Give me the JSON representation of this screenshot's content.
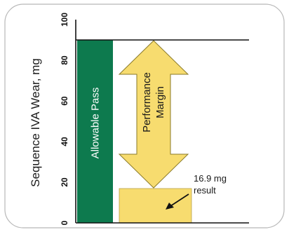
{
  "chart_data": {
    "type": "bar",
    "ylabel": "Sequence IVA Wear, mg",
    "ylim": [
      0,
      100
    ],
    "yticks": [
      "0",
      "20",
      "40",
      "60",
      "80",
      "100"
    ],
    "grid": false,
    "pass_limit": 90,
    "bars": [
      {
        "name": "Allowable Pass",
        "value": 90,
        "color": "#0d7a4e"
      },
      {
        "name": "",
        "value": 16.9,
        "color": "#f7dc6f"
      }
    ],
    "arrow": {
      "label_line1": "Performance",
      "label_line2": "Margin",
      "from": 16.9,
      "to": 90,
      "color": "#f7dc6f"
    },
    "callout": {
      "line1": "16.9 mg",
      "line2": "result"
    }
  }
}
